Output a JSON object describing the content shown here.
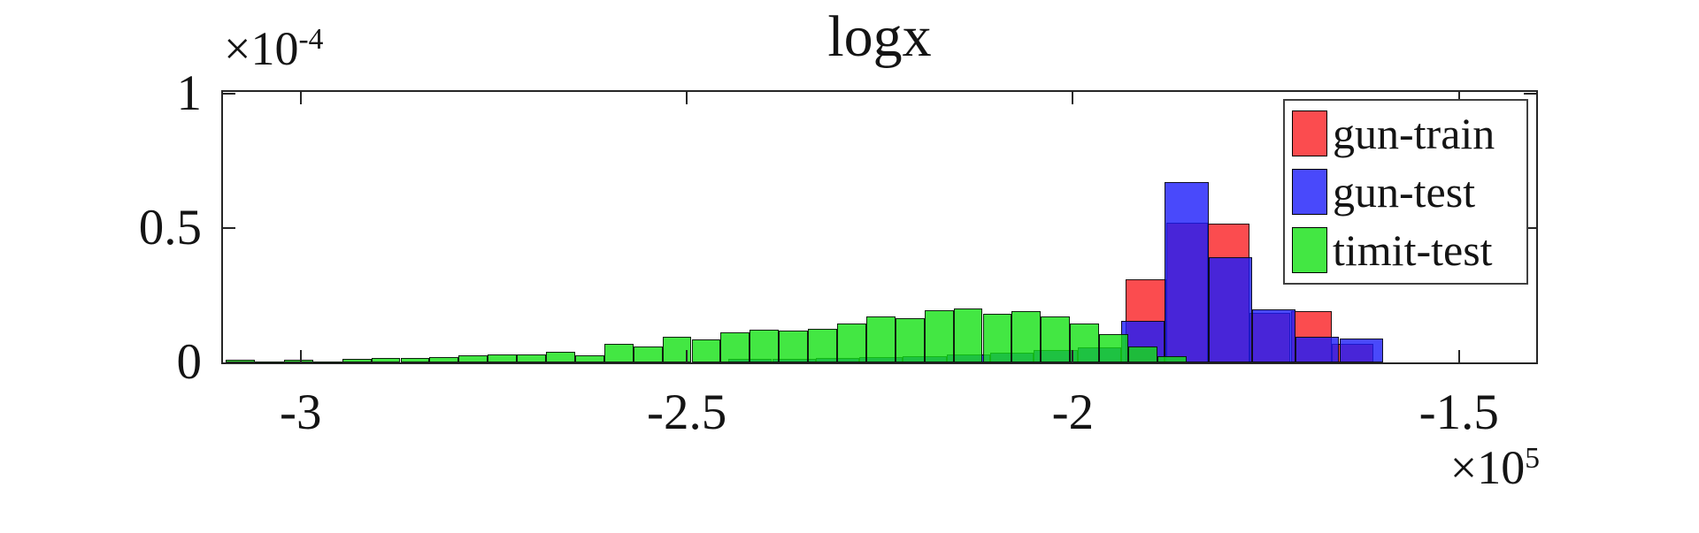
{
  "title": "logx",
  "axes": {
    "x": {
      "tick_labels": [
        "-3",
        "-2.5",
        "-2",
        "-1.5"
      ],
      "tick_values": [
        -3,
        -2.5,
        -2,
        -1.5
      ],
      "offset_base": "×10",
      "offset_exp": "5"
    },
    "y": {
      "tick_labels": [
        "0",
        "0.5",
        "1"
      ],
      "tick_values": [
        0,
        0.5,
        1
      ],
      "offset_base": "×10",
      "offset_exp": "-4"
    }
  },
  "legend": {
    "entries": [
      {
        "label": "gun-train",
        "color": "rgba(250,25,30,0.78)"
      },
      {
        "label": "gun-test",
        "color": "rgba(28,28,250,0.80)"
      },
      {
        "label": "timit-test",
        "color": "rgba(20,225,20,0.80)"
      }
    ]
  },
  "colors": {
    "gun_train_red": "#fb4b4f",
    "gun_test_blue": "#4949fb",
    "timit_test_green": "#43e743",
    "overlap_purple": "#4825d8",
    "axis": "#262626"
  },
  "chart_data": {
    "type": "bar",
    "mode": "overlaid-histograms",
    "title": "logx",
    "xlabel": "",
    "ylabel": "",
    "x_unit_multiplier": "1e5",
    "y_unit_multiplier": "1e-4",
    "xlim": [
      -3.1006,
      -1.4
    ],
    "ylim": [
      0,
      1.0065
    ],
    "grid": false,
    "legend_position": "inside-northeast",
    "series": [
      {
        "name": "gun-train",
        "color": "rgba(250,25,30,0.78)",
        "bin_start": -1.932,
        "bin_width": 0.0535,
        "heights": [
          0.31,
          0.52,
          0.515,
          0.185,
          0.19,
          0.07
        ]
      },
      {
        "name": "gun-test",
        "color": "rgba(28,28,250,0.80)",
        "bin_start": -2.446,
        "bin_width": 0.0565,
        "heights": [
          0.012,
          0.014,
          0.016,
          0.02,
          0.024,
          0.03,
          0.035,
          0.045,
          0.055,
          0.155,
          0.67,
          0.39,
          0.198,
          0.095,
          0.09
        ]
      },
      {
        "name": "timit-test",
        "color": "rgba(20,225,20,0.80)",
        "bin_start": -3.097,
        "bin_width": 0.0377,
        "heights": [
          0.01,
          0.002,
          0.01,
          0.002,
          0.012,
          0.017,
          0.017,
          0.019,
          0.027,
          0.03,
          0.03,
          0.041,
          0.027,
          0.07,
          0.06,
          0.095,
          0.085,
          0.112,
          0.121,
          0.118,
          0.124,
          0.146,
          0.171,
          0.163,
          0.195,
          0.2,
          0.182,
          0.19,
          0.172,
          0.146,
          0.107,
          0.06,
          0.023
        ]
      }
    ]
  }
}
